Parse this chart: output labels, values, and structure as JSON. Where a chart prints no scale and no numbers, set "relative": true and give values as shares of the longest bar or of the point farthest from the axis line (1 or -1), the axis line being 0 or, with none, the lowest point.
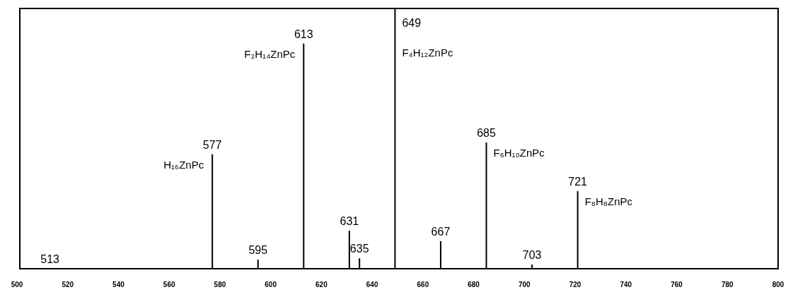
{
  "chart_data": {
    "type": "bar",
    "relative": true,
    "color": "#000000",
    "x": [
      513,
      577,
      595,
      613,
      631,
      635,
      649,
      667,
      685,
      703,
      721
    ],
    "values": [
      0,
      0.44,
      0.035,
      0.865,
      0.146,
      0.04,
      1,
      0.106,
      0.485,
      0.016,
      0.298
    ],
    "xlim": [
      500,
      800
    ],
    "xticks": [
      500,
      520,
      540,
      560,
      580,
      600,
      620,
      640,
      660,
      680,
      700,
      720,
      740,
      760,
      780,
      800
    ],
    "tick_labels": "x",
    "annotations": [
      {
        "text": "513",
        "x": 513,
        "y": 0
      },
      {
        "text": "577",
        "x": 577,
        "y": 0.44
      },
      {
        "text": "595",
        "x": 595,
        "y": 0.035
      },
      {
        "text": "613",
        "x": 613,
        "y": 0.865
      },
      {
        "text": "631",
        "x": 631,
        "y": 0.146
      },
      {
        "text": "635",
        "x": 635,
        "y": 0.04
      },
      {
        "text": "649",
        "x": 649,
        "y": 1
      },
      {
        "text": "667",
        "x": 667,
        "y": 0.106
      },
      {
        "text": "685",
        "x": 685,
        "y": 0.485
      },
      {
        "text": "703",
        "x": 703,
        "y": 0.016
      },
      {
        "text": "721",
        "x": 721,
        "y": 0.298
      },
      {
        "text": "F₂H₁₄ZnPc",
        "x": 613,
        "y": 0.865
      },
      {
        "text": "H₁₆ZnPc",
        "x": 577,
        "y": 0.44
      },
      {
        "text": "F₄H₁₂ZnPc",
        "x": 649,
        "y": 0.87
      },
      {
        "text": "F₆H₁₀ZnPc",
        "x": 685,
        "y": 0.485
      },
      {
        "text": "F₈H₈ZnPc",
        "x": 721,
        "y": 0.298
      }
    ]
  }
}
